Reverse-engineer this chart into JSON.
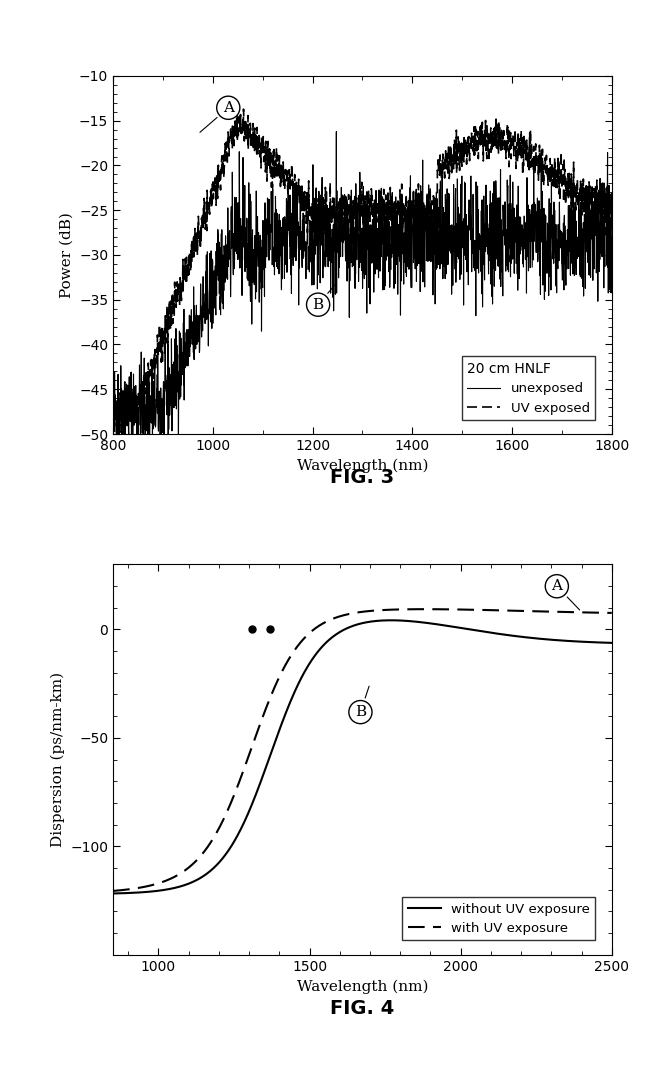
{
  "fig3": {
    "title": "FIG. 3",
    "xlabel": "Wavelength (nm)",
    "ylabel": "Power (dB)",
    "xlim": [
      800,
      1800
    ],
    "ylim": [
      -50,
      -10
    ],
    "yticks": [
      -50,
      -45,
      -40,
      -35,
      -30,
      -25,
      -20,
      -15,
      -10
    ],
    "xticks": [
      800,
      1000,
      1200,
      1400,
      1600,
      1800
    ],
    "legend_title": "20 cm HNLF",
    "legend_line1": "unexposed",
    "legend_line2": "UV exposed",
    "label_A": "A",
    "label_B": "B"
  },
  "fig4": {
    "title": "FIG. 4",
    "xlabel": "Wavelength (nm)",
    "ylabel": "Dispersion (ps/nm-km)",
    "xlim": [
      850,
      2500
    ],
    "ylim": [
      -150,
      30
    ],
    "yticks": [
      -100,
      -50,
      0
    ],
    "xticks": [
      1000,
      1500,
      2000,
      2500
    ],
    "legend_line1": "without UV exposure",
    "legend_line2": "with UV exposure",
    "label_A": "A",
    "label_B": "B",
    "zero_cross_solid": 1370,
    "zero_cross_dashed": 1310
  }
}
